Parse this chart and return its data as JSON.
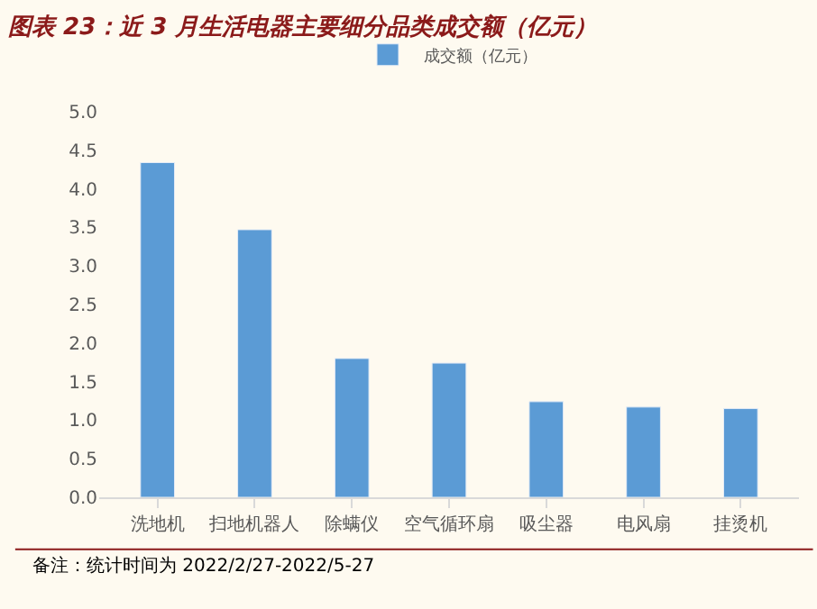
{
  "chart_data": {
    "type": "bar",
    "title": "图表 23：近 3 月生活电器主要细分品类成交额（亿元）",
    "categories": [
      "洗地机",
      "扫地机器人",
      "除螨仪",
      "空气循环扇",
      "吸尘器",
      "电风扇",
      "挂烫机"
    ],
    "series": [
      {
        "name": "成交额（亿元）",
        "color": "#5b9bd5",
        "values": [
          4.34,
          3.47,
          1.8,
          1.74,
          1.24,
          1.17,
          1.15
        ]
      }
    ],
    "ylim": [
      0,
      5
    ],
    "yticks": [
      {
        "value": 0,
        "label": "0.0"
      },
      {
        "value": 0.5,
        "label": "0.5"
      },
      {
        "value": 1,
        "label": "1.0"
      },
      {
        "value": 1.5,
        "label": "1.5"
      },
      {
        "value": 2,
        "label": "2.0"
      },
      {
        "value": 2.5,
        "label": "2.5"
      },
      {
        "value": 3,
        "label": "3.0"
      },
      {
        "value": 3.5,
        "label": "3.5"
      },
      {
        "value": 4,
        "label": "4.0"
      },
      {
        "value": 4.5,
        "label": "4.5"
      },
      {
        "value": 5,
        "label": "5.0"
      }
    ],
    "grid": false,
    "legend": "top",
    "annotations": [
      "备注：统计时间为 2022/2/27-2022/5-27"
    ]
  }
}
